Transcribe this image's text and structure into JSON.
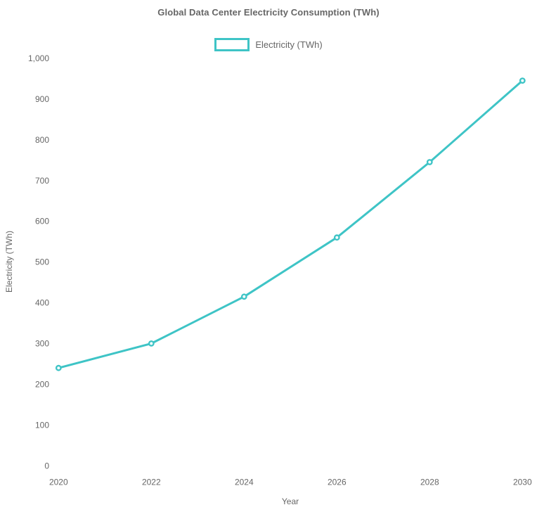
{
  "title": "Global Data Center Electricity Consumption (TWh)",
  "legend": {
    "label": "Electricity (TWh)"
  },
  "axes": {
    "x_title": "Year",
    "y_title": "Electricity (TWh)"
  },
  "colors": {
    "line": "#3EC4C6",
    "text": "#666666",
    "background": "#FFFFFF"
  },
  "chart_data": {
    "type": "line",
    "title": "Global Data Center Electricity Consumption (TWh)",
    "xlabel": "Year",
    "ylabel": "Electricity (TWh)",
    "x": [
      2020,
      2022,
      2024,
      2026,
      2028,
      2030
    ],
    "series": [
      {
        "name": "Electricity (TWh)",
        "values": [
          240,
          300,
          415,
          560,
          745,
          945
        ]
      }
    ],
    "xticks": [
      2020,
      2022,
      2024,
      2026,
      2028,
      2030
    ],
    "yticks": [
      0,
      100,
      200,
      300,
      400,
      500,
      600,
      700,
      800,
      900,
      1000
    ],
    "xlim": [
      2020,
      2030
    ],
    "ylim": [
      0,
      1000
    ],
    "grid": false,
    "legend_position": "top",
    "marker": "open-circle",
    "y_tick_format": "thousands-comma"
  }
}
